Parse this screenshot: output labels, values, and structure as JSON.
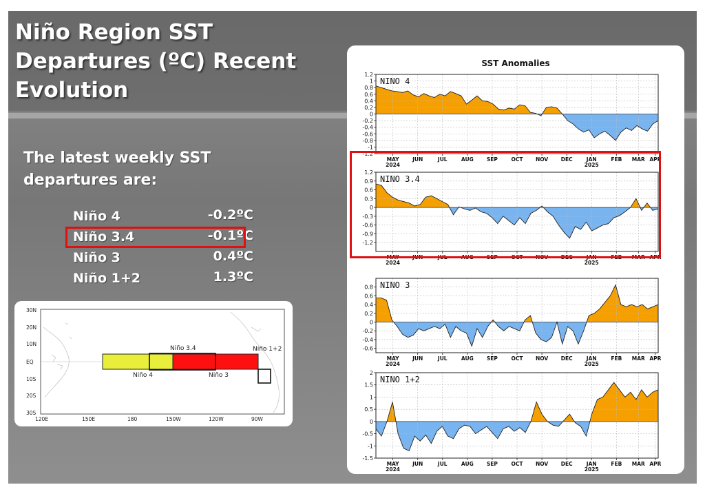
{
  "slide": {
    "title": "Niño Region SST Departures (ºC) Recent Evolution",
    "intro": "The latest weekly SST departures are:",
    "values": [
      {
        "name": "Niño 4",
        "value": "-0.2ºC"
      },
      {
        "name": "Niño 3.4",
        "value": "-0.1ºC"
      },
      {
        "name": "Niño 3",
        "value": "0.4ºC"
      },
      {
        "name": "Niño 1+2",
        "value": "1.3ºC"
      }
    ]
  },
  "map": {
    "lat_labels": [
      "30N",
      "20N",
      "10N",
      "EQ",
      "10S",
      "20S",
      "30S"
    ],
    "lon_labels": [
      "120E",
      "150E",
      "180",
      "150W",
      "120W",
      "90W"
    ],
    "regions": [
      {
        "label": "Niño 4",
        "color": "#e8ee3a"
      },
      {
        "label": "Niño 3.4",
        "color": "#ffffff"
      },
      {
        "label": "Niño 3",
        "color": "#ff1010"
      },
      {
        "label": "Niño 1+2",
        "color": "#ffffff"
      }
    ]
  },
  "chart_data": [
    {
      "type": "area",
      "title": "SST Anomalies",
      "label": "NINO 4",
      "ylim": [
        -1.2,
        1.2
      ],
      "yticks": [
        "1.2",
        "1",
        "0.8",
        "0.6",
        "0.4",
        "0.2",
        "0",
        "-0.2",
        "-0.4",
        "-0.6",
        "-0.8",
        "-1",
        "-1.2"
      ],
      "x_tick_labels": [
        "MAY",
        "JUN",
        "JUL",
        "AUG",
        "SEP",
        "OCT",
        "NOV",
        "DEC",
        "JAN",
        "FEB",
        "MAR",
        "APR"
      ],
      "year_labels": [
        "2024",
        "2025"
      ],
      "pos_color": "#f5a000",
      "neg_color": "#78b4f0",
      "values": [
        0.85,
        0.8,
        0.75,
        0.7,
        0.68,
        0.65,
        0.7,
        0.58,
        0.52,
        0.62,
        0.55,
        0.5,
        0.6,
        0.55,
        0.68,
        0.62,
        0.55,
        0.3,
        0.42,
        0.55,
        0.4,
        0.38,
        0.3,
        0.15,
        0.12,
        0.18,
        0.15,
        0.28,
        0.25,
        0.05,
        0.02,
        -0.05,
        0.2,
        0.22,
        0.18,
        0.0,
        -0.2,
        -0.3,
        -0.45,
        -0.55,
        -0.48,
        -0.72,
        -0.6,
        -0.52,
        -0.65,
        -0.8,
        -0.55,
        -0.42,
        -0.5,
        -0.35,
        -0.45,
        -0.52,
        -0.3,
        -0.2
      ]
    },
    {
      "type": "area",
      "label": "NINO 3.4",
      "ylim": [
        -1.5,
        1.2
      ],
      "yticks": [
        "1.2",
        "0.9",
        "0.6",
        "0.3",
        "0",
        "-0.3",
        "-0.6",
        "-0.9",
        "-1.2"
      ],
      "x_tick_labels": [
        "MAY",
        "JUN",
        "JUL",
        "AUG",
        "SEP",
        "OCT",
        "NOV",
        "DEC",
        "JAN",
        "FEB",
        "MAR",
        "APR"
      ],
      "year_labels": [
        "2024",
        "2025"
      ],
      "pos_color": "#f5a000",
      "neg_color": "#78b4f0",
      "values": [
        0.8,
        0.75,
        0.5,
        0.35,
        0.25,
        0.2,
        0.15,
        0.05,
        0.1,
        0.35,
        0.4,
        0.3,
        0.2,
        0.1,
        -0.25,
        0.02,
        -0.05,
        -0.1,
        -0.02,
        -0.15,
        -0.2,
        -0.35,
        -0.55,
        -0.3,
        -0.45,
        -0.6,
        -0.35,
        -0.55,
        -0.2,
        -0.1,
        0.05,
        -0.15,
        -0.3,
        -0.6,
        -0.85,
        -1.05,
        -0.65,
        -0.75,
        -0.5,
        -0.8,
        -0.7,
        -0.6,
        -0.55,
        -0.35,
        -0.28,
        -0.15,
        0.0,
        0.3,
        -0.1,
        0.15,
        -0.1,
        -0.05
      ]
    },
    {
      "type": "area",
      "label": "NINO 3",
      "ylim": [
        -0.7,
        1.0
      ],
      "yticks": [
        "0.8",
        "0.6",
        "0.4",
        "0.2",
        "0",
        "-0.2",
        "-0.4",
        "-0.6"
      ],
      "x_tick_labels": [
        "MAY",
        "JUN",
        "JUL",
        "AUG",
        "SEP",
        "OCT",
        "NOV",
        "DEC",
        "JAN",
        "FEB",
        "MAR",
        "APR"
      ],
      "year_labels": [
        "2024",
        "2025"
      ],
      "pos_color": "#f5a000",
      "neg_color": "#78b4f0",
      "values": [
        0.55,
        0.55,
        0.5,
        0.05,
        -0.1,
        -0.28,
        -0.35,
        -0.3,
        -0.15,
        -0.2,
        -0.15,
        -0.1,
        -0.15,
        -0.05,
        -0.35,
        -0.1,
        -0.2,
        -0.25,
        -0.55,
        -0.15,
        -0.35,
        -0.1,
        0.05,
        -0.1,
        -0.2,
        -0.1,
        -0.15,
        -0.2,
        0.05,
        0.15,
        -0.25,
        -0.4,
        -0.45,
        -0.35,
        0.0,
        -0.5,
        -0.1,
        -0.2,
        -0.5,
        -0.2,
        0.15,
        0.2,
        0.3,
        0.45,
        0.6,
        0.85,
        0.4,
        0.35,
        0.4,
        0.35,
        0.4,
        0.3,
        0.35,
        0.4
      ]
    },
    {
      "type": "area",
      "label": "NINO 1+2",
      "ylim": [
        -1.5,
        2.0
      ],
      "yticks": [
        "2",
        "1.5",
        "1",
        "0.5",
        "0",
        "-0.5",
        "-1",
        "-1.5"
      ],
      "x_tick_labels": [
        "MAY",
        "JUN",
        "JUL",
        "AUG",
        "SEP",
        "OCT",
        "NOV",
        "DEC",
        "JAN",
        "FEB",
        "MAR",
        "APR"
      ],
      "year_labels": [
        "2024",
        "2025"
      ],
      "pos_color": "#f5a000",
      "neg_color": "#78b4f0",
      "values": [
        -0.3,
        -0.6,
        0.0,
        0.8,
        -0.5,
        -1.1,
        -1.2,
        -0.6,
        -0.8,
        -0.55,
        -0.9,
        -0.4,
        -0.2,
        -0.6,
        -0.7,
        -0.3,
        -0.15,
        -0.2,
        -0.5,
        -0.35,
        -0.2,
        -0.45,
        -0.7,
        -0.3,
        -0.2,
        -0.4,
        -0.25,
        -0.45,
        0.0,
        0.8,
        0.3,
        0.0,
        -0.15,
        -0.2,
        0.05,
        0.3,
        -0.05,
        -0.2,
        -0.6,
        0.3,
        0.9,
        1.0,
        1.3,
        1.6,
        1.3,
        1.0,
        1.2,
        0.9,
        1.3,
        1.0,
        1.2,
        1.3
      ]
    }
  ]
}
